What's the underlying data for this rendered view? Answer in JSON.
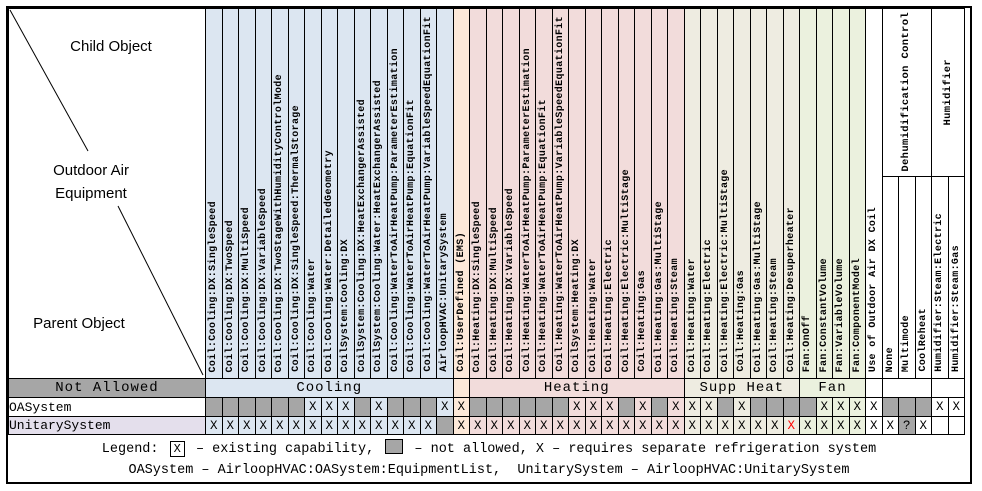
{
  "corner": {
    "child_object": "Child Object",
    "outdoor_air_line1": "Outdoor Air",
    "outdoor_air_line2": "Equipment",
    "parent_object": "Parent Object"
  },
  "top_groups": {
    "dehumidification": "Dehumidification Control",
    "humidifier": "Humidifier"
  },
  "columns": [
    {
      "label": "Coil:Cooling:DX:SingleSpeed",
      "group": "cooling"
    },
    {
      "label": "Coil:Cooling:DX:TwoSpeed",
      "group": "cooling"
    },
    {
      "label": "Coil:Cooling:DX:MultiSpeed",
      "group": "cooling"
    },
    {
      "label": "Coil:Cooling:DX:VariableSpeed",
      "group": "cooling"
    },
    {
      "label": "Coil:Cooling:DX:TwoStageWithHumidityControlMode",
      "group": "cooling"
    },
    {
      "label": "Coil:Cooling:DX:SingleSpeed:ThermalStorage",
      "group": "cooling"
    },
    {
      "label": "Coil:Cooling:Water",
      "group": "cooling"
    },
    {
      "label": "Coil:Cooling:Water:DetailedGeometry",
      "group": "cooling"
    },
    {
      "label": "CoilSystem:Cooling:DX",
      "group": "cooling"
    },
    {
      "label": "CoilSystem:Cooling:DX:HeatExchangerAssisted",
      "group": "cooling"
    },
    {
      "label": "CoilSystem:Cooling:Water:HeatExchangerAssisted",
      "group": "cooling"
    },
    {
      "label": "Coil:Cooling:WaterToAirHeatPump:ParameterEstimation",
      "group": "cooling"
    },
    {
      "label": "Coil:Cooling:WaterToAirHeatPump:EquationFit",
      "group": "cooling"
    },
    {
      "label": "Coil:Cooling:WaterToAirHeatPump:VariableSpeedEquationFit",
      "group": "cooling"
    },
    {
      "label": "AirloopHVAC:UnitarySystem",
      "group": "cooling"
    },
    {
      "label": "Coil:UserDefined (EMS)",
      "group": "user"
    },
    {
      "label": "Coil:Heating:DX:SingleSpeed",
      "group": "heating"
    },
    {
      "label": "Coil:Heating:DX:MultiSpeed",
      "group": "heating"
    },
    {
      "label": "Coil:Heating:DX:VariableSpeed",
      "group": "heating"
    },
    {
      "label": "Coil:Heating:WaterToAirHeatPump:ParameterEstimation",
      "group": "heating"
    },
    {
      "label": "Coil:Heating:WaterToAirHeatPump:EquationFit",
      "group": "heating"
    },
    {
      "label": "Coil:Heating:WaterToAirHeatPump:VariableSpeedEquationFit",
      "group": "heating"
    },
    {
      "label": "CoilSystem:Heating:DX",
      "group": "heating"
    },
    {
      "label": "Coil:Heating:Water",
      "group": "heating"
    },
    {
      "label": "Coil:Heating:Electric",
      "group": "heating"
    },
    {
      "label": "Coil:Heating:Electric:MultiStage",
      "group": "heating"
    },
    {
      "label": "Coil:Heating:Gas",
      "group": "heating"
    },
    {
      "label": "Coil:Heating:Gas:MultiStage",
      "group": "heating"
    },
    {
      "label": "Coil:Heating:Steam",
      "group": "heating"
    },
    {
      "label": "Coil:Heating:Water",
      "group": "supp"
    },
    {
      "label": "Coil:Heating:Electric",
      "group": "supp"
    },
    {
      "label": "Coil:Heating:Electric:MultiStage",
      "group": "supp"
    },
    {
      "label": "Coil:Heating:Gas",
      "group": "supp"
    },
    {
      "label": "Coil:Heating:Gas:MultiStage",
      "group": "supp"
    },
    {
      "label": "Coil:Heating:Steam",
      "group": "supp"
    },
    {
      "label": "Coil:Heating:Desuperheater",
      "group": "supp"
    },
    {
      "label": "Fan:OnOff",
      "group": "fan"
    },
    {
      "label": "Fan:ConstantVolume",
      "group": "fan"
    },
    {
      "label": "Fan:VariableVolume",
      "group": "fan"
    },
    {
      "label": "Fan:ComponentModel",
      "group": "fan"
    },
    {
      "label": "Use of Outdoor Air DX Coil",
      "group": "oadx"
    },
    {
      "label": "None",
      "group": "dehum"
    },
    {
      "label": "Multimode",
      "group": "dehum"
    },
    {
      "label": "CoolReheat",
      "group": "dehum"
    },
    {
      "label": "Humidifier:Steam:Electric",
      "group": "hum"
    },
    {
      "label": "Humidifier:Steam:Gas",
      "group": "hum"
    }
  ],
  "group_row": [
    {
      "label": "Not Allowed",
      "span": 1,
      "style": "gray"
    },
    {
      "label": "Cooling",
      "span": 15,
      "style": "cooling"
    },
    {
      "label": "",
      "span": 1,
      "style": "user"
    },
    {
      "label": "Heating",
      "span": 13,
      "style": "heating"
    },
    {
      "label": "Supp Heat",
      "span": 7,
      "style": "supp"
    },
    {
      "label": "Fan",
      "span": 4,
      "style": "fan"
    },
    {
      "label": "",
      "span": 1,
      "style": "white"
    },
    {
      "label": "",
      "span": 3,
      "style": "white"
    },
    {
      "label": "",
      "span": 2,
      "style": "white"
    }
  ],
  "rows": [
    {
      "label": "OASystem",
      "cells": [
        "N",
        "N",
        "N",
        "N",
        "N",
        "N",
        "X",
        "X",
        "X",
        "N",
        "X",
        "N",
        "N",
        "N",
        "X",
        "X",
        "N",
        "N",
        "N",
        "N",
        "N",
        "N",
        "X",
        "X",
        "X",
        "N",
        "X",
        "N",
        "X",
        "X",
        "X",
        "N",
        "X",
        "N",
        "N",
        "N",
        "N",
        "X",
        "X",
        "X",
        "X",
        "N",
        "N",
        "N",
        "X",
        "X"
      ]
    },
    {
      "label": "UnitarySystem",
      "cells": [
        "X",
        "X",
        "X",
        "X",
        "X",
        "X",
        "X",
        "X",
        "X",
        "X",
        "X",
        "X",
        "X",
        "X",
        "N",
        "X",
        "X",
        "X",
        "X",
        "X",
        "X",
        "X",
        "X",
        "X",
        "X",
        "X",
        "X",
        "X",
        "X",
        "X",
        "X",
        "X",
        "X",
        "X",
        "X",
        "R",
        "X",
        "X",
        "X",
        "X",
        "X",
        "X",
        "Q",
        "X",
        "",
        ""
      ]
    }
  ],
  "legend": {
    "prefix": "Legend:",
    "existing_symbol": "X",
    "existing_text": "– existing capability,",
    "not_allowed_text": "– not allowed,",
    "separate_text": "X – requires separate refrigeration system",
    "line2": "OASystem – AirloopHVAC:OASystem:EquipmentList,  UnitarySystem – AirloopHVAC:UnitarySystem"
  },
  "colors": {
    "not_allowed_gray": "#a6a6a6",
    "cooling": "#dce6f1",
    "userdefined": "#fde9d9",
    "heating": "#f2dcdb",
    "supp_heat": "#eeece1",
    "fan": "#ebf1de",
    "unitary_row_label": "#e4dfec",
    "red_x": "#ff0000"
  }
}
